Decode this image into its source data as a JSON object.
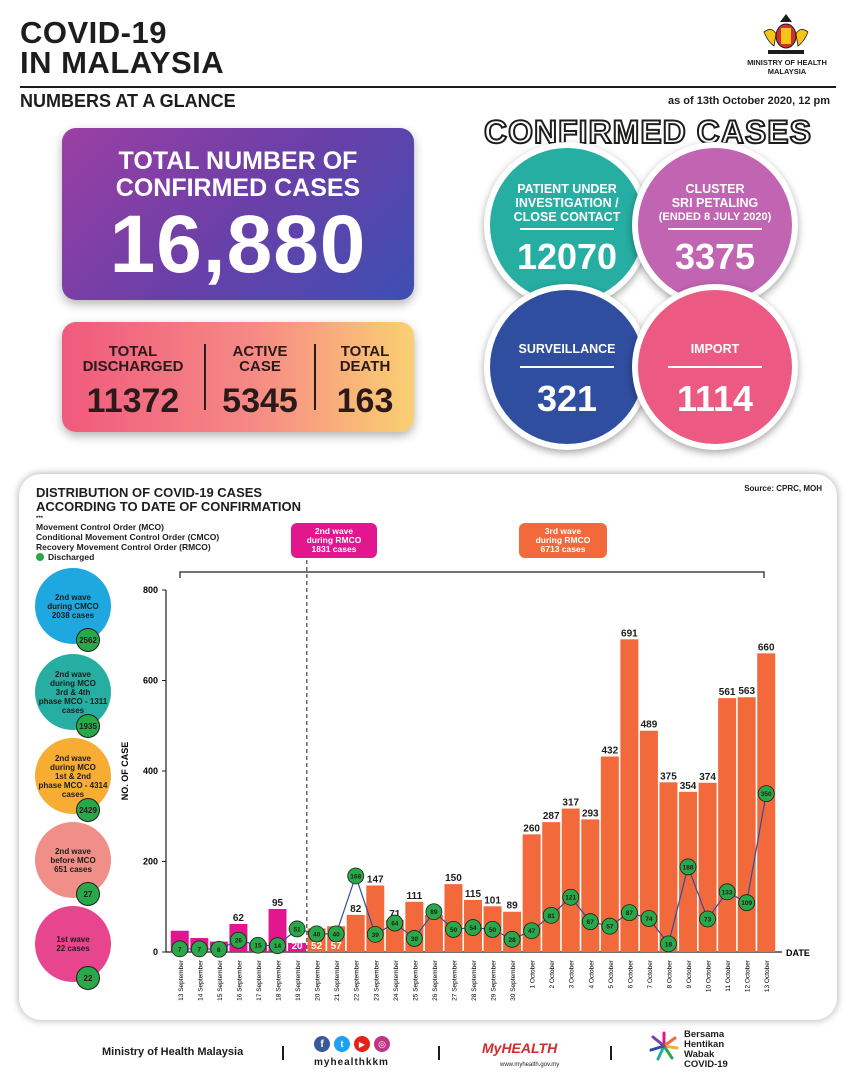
{
  "header": {
    "title_line1": "COVID-19",
    "title_line2": "IN MALAYSIA",
    "subtitle": "NUMBERS AT A GLANCE",
    "as_of": "as of 13th October 2020, 12 pm",
    "ministry_line1": "MINISTRY OF HEALTH",
    "ministry_line2": "MALAYSIA"
  },
  "total": {
    "label_line1": "TOTAL NUMBER OF",
    "label_line2": "CONFIRMED CASES",
    "value": "16,880"
  },
  "summary": [
    {
      "label1": "TOTAL",
      "label2": "DISCHARGED",
      "value": "11372"
    },
    {
      "label1": "ACTIVE",
      "label2": "CASE",
      "value": "5345"
    },
    {
      "label1": "TOTAL",
      "label2": "DEATH",
      "value": "163"
    }
  ],
  "confirmed": {
    "title": "CONFIRMED CASES",
    "pui": {
      "line1": "PATIENT UNDER",
      "line2": "INVESTIGATION /",
      "line3": "CLOSE CONTACT",
      "value": "12070",
      "color": "#27aea2"
    },
    "cluster": {
      "line1": "CLUSTER",
      "line2": "SRI PETALING",
      "line3": "(ENDED 8 JULY 2020)",
      "value": "3375",
      "color": "#c164b1"
    },
    "surveillance": {
      "label": "SURVEILLANCE",
      "value": "321",
      "color": "#2f4e9f"
    },
    "import": {
      "label": "IMPORT",
      "value": "1114",
      "color": "#ec5a83"
    }
  },
  "panel": {
    "title_line1": "DISTRIBUTION OF COVID-19 CASES",
    "title_line2": "ACCORDING TO DATE OF CONFIRMATION",
    "source": "Source: CPRC, MOH",
    "legend_mark": "***",
    "legend_mco": "Movement Control Order (MCO)",
    "legend_cmco": "Conditional Movement Control Order (CMCO)",
    "legend_rmco": "Recovery Movement Control Order (RMCO)",
    "legend_discharged": "Discharged"
  },
  "waves": [
    {
      "text1": "2nd wave",
      "text2": "during CMCO",
      "text3": "2038 cases",
      "text4": "",
      "badge": "2562",
      "color": "#1fa7e0"
    },
    {
      "text1": "2nd wave",
      "text2": "during MCO",
      "text3": "3rd & 4th",
      "text4": "phase MCO - 1311 cases",
      "badge": "1935",
      "color": "#27aea2"
    },
    {
      "text1": "2nd wave",
      "text2": "during MCO",
      "text3": "1st & 2nd",
      "text4": "phase MCO - 4314 cases",
      "badge": "2429",
      "color": "#f7ad32"
    },
    {
      "text1": "2nd wave",
      "text2": "before MCO",
      "text3": "651 cases",
      "text4": "",
      "badge": "27",
      "color": "#f08f88"
    },
    {
      "text1": "1st wave",
      "text2": "22 cases",
      "text3": "",
      "text4": "",
      "badge": "22",
      "color": "#e8458f"
    }
  ],
  "wave_labels": {
    "rmco2": {
      "line1": "2nd wave",
      "line2": "during RMCO",
      "line3": "1831 cases",
      "color": "#e2168f"
    },
    "rmco3": {
      "line1": "3rd wave",
      "line2": "during RMCO",
      "line3": "6713 cases",
      "color": "#f26a3c"
    }
  },
  "chart_data": {
    "type": "bar",
    "ylabel": "NO. OF CASE",
    "xlabel": "DATE",
    "ylim": [
      0,
      800
    ],
    "yticks": [
      0,
      200,
      400,
      600,
      800
    ],
    "categories": [
      "13 September",
      "14 September",
      "15 September",
      "16 September",
      "17 September",
      "18 September",
      "19 September",
      "20 September",
      "21 September",
      "22 September",
      "23 September",
      "24 September",
      "25 September",
      "26 September",
      "27 September",
      "28 September",
      "29 September",
      "30 September",
      "1 October",
      "2 October",
      "3 October",
      "4 October",
      "5 October",
      "6 October",
      "7 October",
      "8 October",
      "9 October",
      "10 October",
      "11 October",
      "12 October",
      "13 October"
    ],
    "series": [
      {
        "name": "Confirmed",
        "values": [
          47,
          31,
          23,
          62,
          21,
          95,
          20,
          52,
          57,
          82,
          147,
          71,
          111,
          82,
          150,
          115,
          101,
          89,
          260,
          287,
          317,
          293,
          432,
          691,
          489,
          375,
          354,
          374,
          561,
          563,
          660
        ]
      },
      {
        "name": "Discharged",
        "values": [
          7,
          7,
          6,
          26,
          15,
          14,
          51,
          40,
          40,
          168,
          39,
          64,
          30,
          89,
          50,
          54,
          50,
          28,
          47,
          81,
          121,
          67,
          57,
          87,
          74,
          18,
          188,
          73,
          133,
          109,
          350
        ]
      }
    ],
    "bar_colors": [
      "#e2168f",
      "#e2168f",
      "#e2168f",
      "#e2168f",
      "#e2168f",
      "#e2168f",
      "#e2168f",
      "#f26a3c",
      "#f26a3c",
      "#f26a3c",
      "#f26a3c",
      "#f26a3c",
      "#f26a3c",
      "#f26a3c",
      "#f26a3c",
      "#f26a3c",
      "#f26a3c",
      "#f26a3c",
      "#f26a3c",
      "#f26a3c",
      "#f26a3c",
      "#f26a3c",
      "#f26a3c",
      "#f26a3c",
      "#f26a3c",
      "#f26a3c",
      "#f26a3c",
      "#f26a3c",
      "#f26a3c",
      "#f26a3c",
      "#f26a3c"
    ],
    "discharged_color": "#29a84a"
  },
  "footer": {
    "ministry": "Ministry of Health Malaysia",
    "handle": "myhealthkkm",
    "myhealth": "MyHEALTH",
    "myhealth_url": "www.myhealth.gov.my",
    "campaign_line1": "Bersama",
    "campaign_line2": "Hentikan",
    "campaign_line3": "Wabak",
    "campaign_line4": "COVID-19"
  }
}
